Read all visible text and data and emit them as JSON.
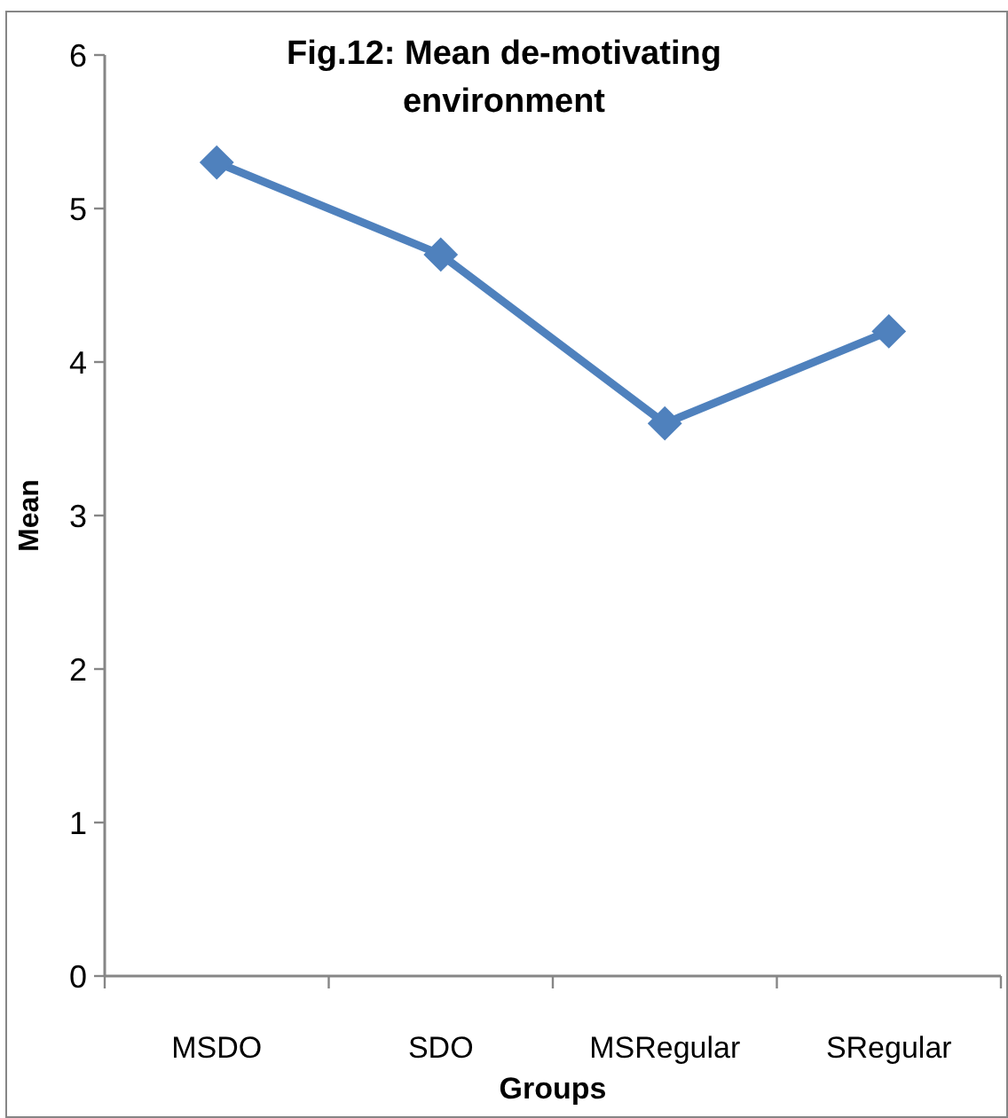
{
  "chart_data": {
    "type": "line",
    "title": "Fig.12: Mean de-motivating environment",
    "xlabel": "Groups",
    "ylabel": "Mean",
    "categories": [
      "MSDO",
      "SDO",
      "MSRegular",
      "SRegular"
    ],
    "series": [
      {
        "color": "#4f81bd",
        "values": [
          5.3,
          4.7,
          3.6,
          4.2
        ]
      }
    ],
    "ylim": [
      0,
      6
    ],
    "yticks": [
      0,
      1,
      2,
      3,
      4,
      5,
      6
    ],
    "marker": "diamond"
  }
}
